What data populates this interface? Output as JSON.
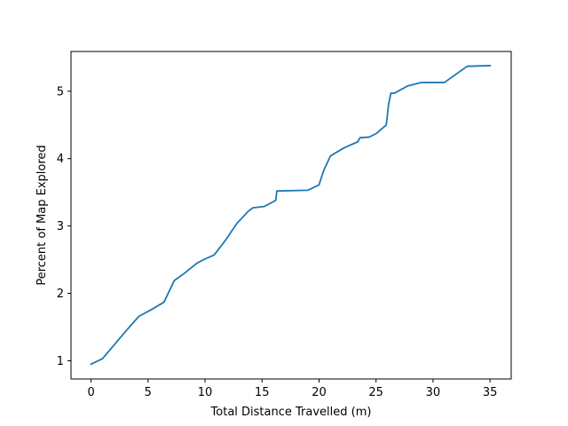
{
  "chart_data": {
    "type": "line",
    "title": "",
    "xlabel": "Total Distance Travelled (m)",
    "ylabel": "Percent of Map Explored",
    "xlim": [
      -1.76,
      36.86
    ],
    "ylim": [
      0.73,
      5.59
    ],
    "xticks": [
      0,
      5,
      10,
      15,
      20,
      25,
      30,
      35
    ],
    "yticks": [
      1,
      2,
      3,
      4,
      5
    ],
    "grid": false,
    "line_color": "#1f77b4",
    "series": [
      {
        "x": [
          0,
          1.0,
          2.0,
          3.0,
          4.2,
          5.3,
          6.4,
          7.3,
          8.2,
          9.3,
          10.0,
          10.8,
          11.8,
          12.8,
          13.8,
          14.2,
          15.2,
          16.2,
          16.3,
          19.0,
          20.0,
          20.4,
          21.0,
          22.2,
          23.4,
          23.6,
          24.4,
          25.0,
          25.9,
          26.1,
          26.3,
          26.6,
          27.8,
          29.0,
          31.0,
          33.0,
          35.0
        ],
        "y": [
          0.95,
          1.03,
          1.23,
          1.43,
          1.66,
          1.76,
          1.87,
          2.19,
          2.3,
          2.45,
          2.51,
          2.57,
          2.79,
          3.04,
          3.22,
          3.27,
          3.29,
          3.38,
          3.52,
          3.53,
          3.61,
          3.82,
          4.04,
          4.16,
          4.25,
          4.31,
          4.32,
          4.37,
          4.5,
          4.8,
          4.97,
          4.97,
          5.08,
          5.13,
          5.13,
          5.37,
          5.38
        ]
      }
    ]
  }
}
